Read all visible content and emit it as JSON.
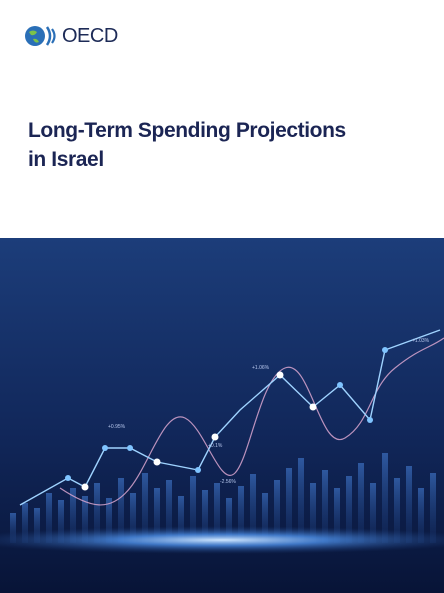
{
  "header": {
    "logo_text": "OECD"
  },
  "title": [
    "Long-Term Spending Projections",
    "in Israel"
  ],
  "illustration": {
    "labels": [
      "+1.06%",
      "+0.1%",
      "-2.56%",
      "+0.95%",
      "+1.03%"
    ]
  }
}
